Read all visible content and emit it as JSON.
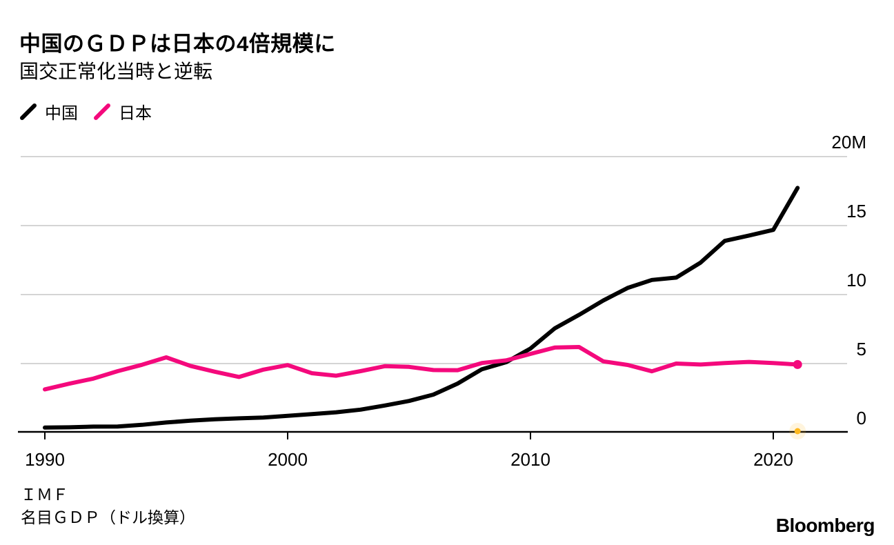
{
  "header": {
    "title": "中国のＧＤＰは日本の4倍規模に",
    "subtitle": "国交正常化当時と逆転"
  },
  "footer": {
    "source": "ＩＭＦ",
    "note": "名目ＧＤＰ（ドル換算）",
    "brand": "Bloomberg"
  },
  "colors": {
    "background": "#ffffff",
    "grid": "#d4d4d4",
    "axis": "#000000",
    "text": "#000000",
    "china": "#000000",
    "japan": "#f4097c",
    "latest_dot": "#fdb71c"
  },
  "chart_data": {
    "type": "line",
    "title": "中国のＧＤＰは日本の4倍規模に",
    "subtitle": "国交正常化当時と逆転",
    "x": [
      1990,
      1991,
      1992,
      1993,
      1994,
      1995,
      1996,
      1997,
      1998,
      1999,
      2000,
      2001,
      2002,
      2003,
      2004,
      2005,
      2006,
      2007,
      2008,
      2009,
      2010,
      2011,
      2012,
      2013,
      2014,
      2015,
      2016,
      2017,
      2018,
      2019,
      2020,
      2021
    ],
    "series": [
      {
        "name": "中国",
        "color": "#000000",
        "values": [
          0.36,
          0.38,
          0.43,
          0.44,
          0.56,
          0.73,
          0.86,
          0.96,
          1.03,
          1.09,
          1.21,
          1.34,
          1.47,
          1.66,
          1.96,
          2.29,
          2.75,
          3.55,
          4.59,
          5.1,
          6.09,
          7.55,
          8.53,
          9.57,
          10.48,
          11.06,
          11.23,
          12.31,
          13.89,
          14.28,
          14.69,
          17.73
        ]
      },
      {
        "name": "日本",
        "color": "#f4097c",
        "values": [
          3.13,
          3.54,
          3.91,
          4.45,
          4.91,
          5.45,
          4.83,
          4.41,
          4.03,
          4.56,
          4.89,
          4.3,
          4.12,
          4.45,
          4.81,
          4.76,
          4.53,
          4.52,
          5.04,
          5.23,
          5.7,
          6.16,
          6.2,
          5.16,
          4.9,
          4.44,
          5.0,
          4.93,
          5.04,
          5.12,
          5.04,
          4.93
        ]
      }
    ],
    "ylim": [
      0,
      20
    ],
    "y_ticks": [
      {
        "label": "20M",
        "value": 20
      },
      {
        "label": "15",
        "value": 15
      },
      {
        "label": "10",
        "value": 10
      },
      {
        "label": "5",
        "value": 5
      },
      {
        "label": "0",
        "value": 0
      }
    ],
    "x_ticks": [
      {
        "label": "1990",
        "value": 1990
      },
      {
        "label": "2000",
        "value": 2000
      },
      {
        "label": "2010",
        "value": 2010
      },
      {
        "label": "2020",
        "value": 2020
      }
    ],
    "grid": "horizontal",
    "legend_position": "top-left",
    "end_markers": {
      "japan_end_dot": true,
      "latest_axis_dot_color": "#fdb71c"
    }
  }
}
